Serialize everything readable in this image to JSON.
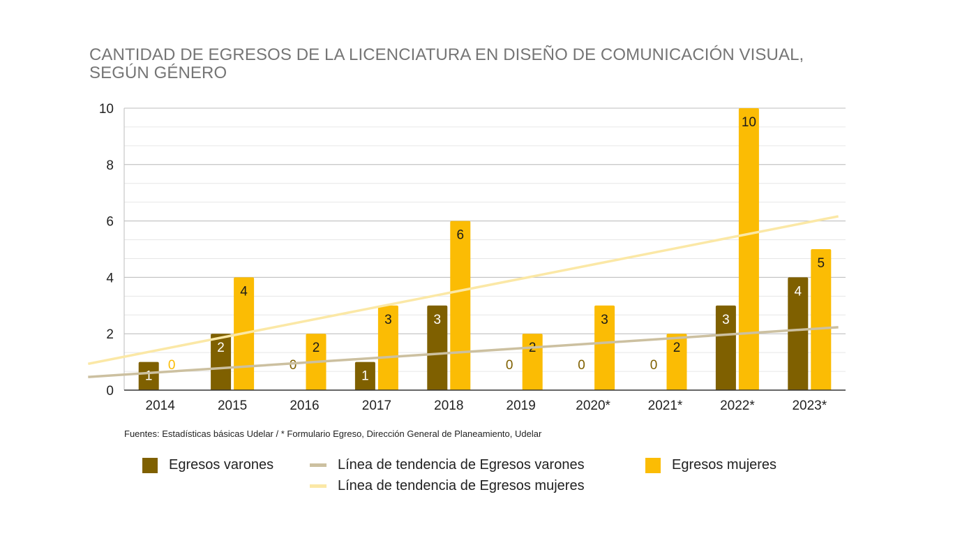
{
  "title": "CANTIDAD DE EGRESOS DE LA LICENCIATURA EN DISEÑO DE COMUNICACIÓN VISUAL, SEGÚN GÉNERO",
  "source_note": "Fuentes: Estadísticas básicas Udelar / * Formulario Egreso, Dirección General de Planeamiento, Udelar",
  "legend": {
    "varones": "Egresos varones",
    "trend_varones": "Línea de tendencia de Egresos varones",
    "mujeres": "Egresos mujeres",
    "trend_mujeres": "Línea de tendencia de Egresos mujeres"
  },
  "colors": {
    "varones": "#7f6000",
    "mujeres": "#fbbc04",
    "trend_varones": "#ccc0a0",
    "trend_mujeres": "#fbe8a6",
    "zero_label_varones": "#7f6000",
    "zero_label_mujeres": "#fbbc04"
  },
  "chart_data": {
    "type": "bar",
    "title": "CANTIDAD DE EGRESOS DE LA LICENCIATURA EN DISEÑO DE COMUNICACIÓN VISUAL, SEGÚN GÉNERO",
    "categories": [
      "2014",
      "2015",
      "2016",
      "2017",
      "2018",
      "2019",
      "2020*",
      "2021*",
      "2022*",
      "2023*"
    ],
    "series": [
      {
        "name": "Egresos varones",
        "values": [
          1,
          2,
          0,
          1,
          3,
          0,
          0,
          0,
          3,
          4
        ]
      },
      {
        "name": "Egresos mujeres",
        "values": [
          0,
          4,
          2,
          3,
          6,
          2,
          3,
          2,
          10,
          5
        ]
      }
    ],
    "trendlines": [
      {
        "name": "Línea de tendencia de Egresos varones",
        "type": "linear",
        "series": "Egresos varones"
      },
      {
        "name": "Línea de tendencia de Egresos mujeres",
        "type": "linear",
        "series": "Egresos mujeres"
      }
    ],
    "ylim": [
      0,
      10
    ],
    "yticks": [
      0,
      2,
      4,
      6,
      8,
      10
    ],
    "xlabel": "",
    "ylabel": "",
    "grid": true,
    "legend_position": "bottom",
    "data_labels": true
  }
}
